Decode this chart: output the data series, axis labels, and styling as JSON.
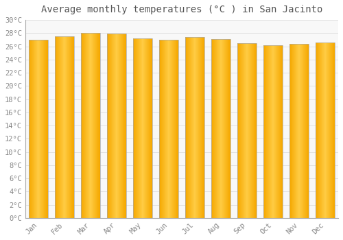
{
  "title": "Average monthly temperatures (°C ) in San Jacinto",
  "months": [
    "Jan",
    "Feb",
    "Mar",
    "Apr",
    "May",
    "Jun",
    "Jul",
    "Aug",
    "Sep",
    "Oct",
    "Nov",
    "Dec"
  ],
  "values": [
    27.0,
    27.5,
    28.0,
    27.9,
    27.2,
    27.0,
    27.4,
    27.1,
    26.5,
    26.2,
    26.4,
    26.6
  ],
  "bar_color_center": "#FFCC44",
  "bar_color_edge": "#F5A800",
  "background_color": "#FFFFFF",
  "plot_bg_color": "#F8F8F8",
  "grid_color": "#DDDDDD",
  "text_color": "#888888",
  "border_color": "#AAAAAA",
  "ylim": [
    0,
    30
  ],
  "ytick_step": 2,
  "title_fontsize": 10,
  "tick_fontsize": 7.5
}
